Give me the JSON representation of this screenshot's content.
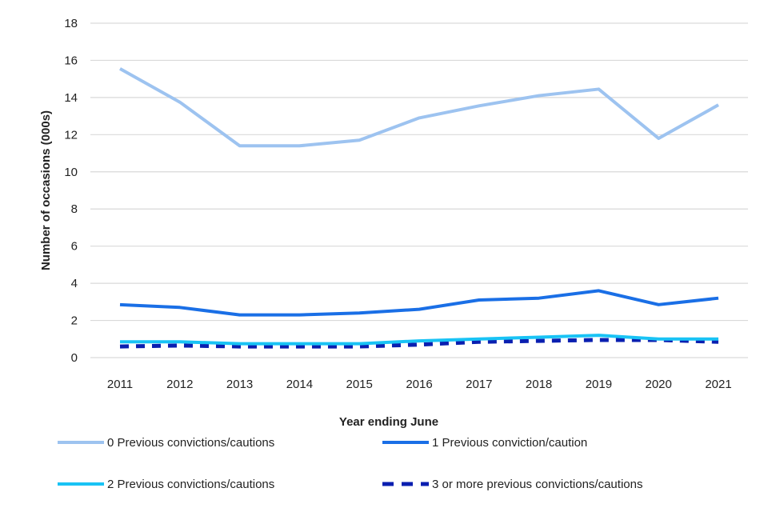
{
  "chart_data": {
    "type": "line",
    "title": "",
    "xlabel": "Year ending June",
    "ylabel": "Number of occasions  (000s)",
    "ylim": [
      0,
      18
    ],
    "yticks": [
      0,
      2,
      4,
      6,
      8,
      10,
      12,
      14,
      16,
      18
    ],
    "grid": true,
    "legend_position": "bottom",
    "categories": [
      "2011",
      "2012",
      "2013",
      "2014",
      "2015",
      "2016",
      "2017",
      "2018",
      "2019",
      "2020",
      "2021"
    ],
    "series": [
      {
        "name": "0 Previous convictions/cautions",
        "color": "#9dc3f0",
        "dash": false,
        "values": [
          15.55,
          13.75,
          11.4,
          11.4,
          11.7,
          12.9,
          13.55,
          14.1,
          14.45,
          11.8,
          13.6
        ]
      },
      {
        "name": "1 Previous conviction/caution",
        "color": "#1a6fe6",
        "dash": false,
        "values": [
          2.85,
          2.7,
          2.3,
          2.3,
          2.4,
          2.6,
          3.1,
          3.2,
          3.6,
          2.85,
          3.2
        ]
      },
      {
        "name": "2 Previous convictions/cautions",
        "color": "#19c3f5",
        "dash": false,
        "values": [
          0.85,
          0.85,
          0.75,
          0.75,
          0.75,
          0.9,
          1.0,
          1.1,
          1.2,
          1.0,
          1.0
        ]
      },
      {
        "name": "3 or more previous convictions/cautions",
        "color": "#0a1fb0",
        "dash": true,
        "values": [
          0.6,
          0.65,
          0.6,
          0.6,
          0.6,
          0.7,
          0.85,
          0.9,
          0.95,
          0.95,
          0.85
        ]
      }
    ]
  }
}
